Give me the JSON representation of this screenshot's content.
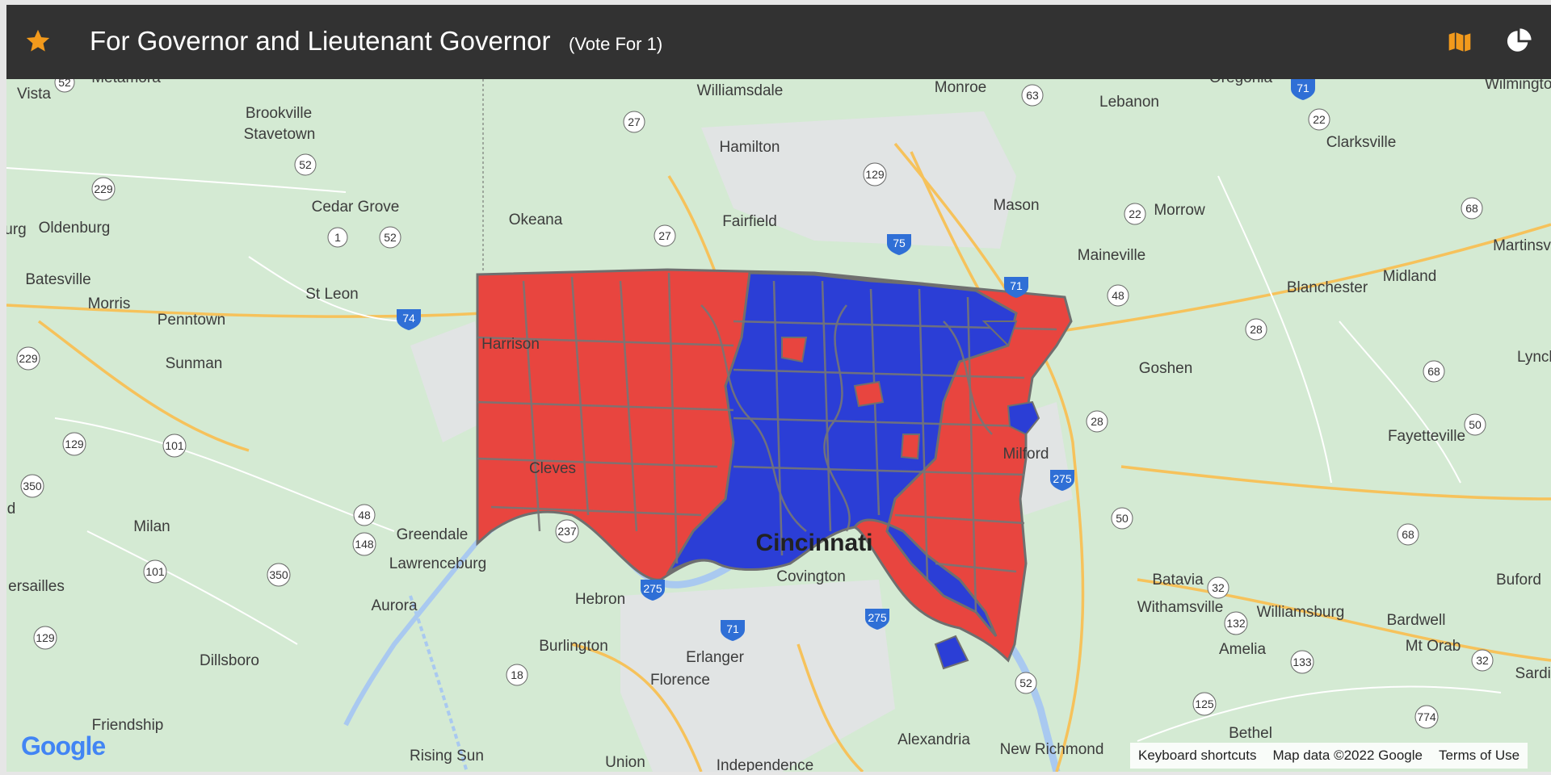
{
  "header": {
    "title": "For Governor and Lieutenant Governor",
    "subtitle": "(Vote For 1)",
    "accent_color": "#f29a1c",
    "star_icon": "star-icon",
    "map_icon": "map-icon",
    "chart_icon": "pie-chart-icon"
  },
  "map": {
    "party_colors": {
      "red": "#e8453f",
      "blue": "#2b3ed6"
    },
    "places": [
      "Metamora",
      "Vista",
      "Brookville",
      "Stavetown",
      "Williamsdale",
      "Monroe",
      "Lebanon",
      "Oregonia",
      "Wilmington",
      "Hamilton",
      "Clarksville",
      "Oldenburg",
      "Cedar Grove",
      "Okeana",
      "Fairfield",
      "Mason",
      "Morrow",
      "Martinsv",
      "Batesville",
      "Morris",
      "St Leon",
      "Maineville",
      "Midland",
      "Blanchester",
      "Penntown",
      "Harrison",
      "Sunman",
      "Goshen",
      "Lynch",
      "Fayetteville",
      "Cleves",
      "Milford",
      "Milan",
      "Greendale",
      "Lawrenceburg",
      "Cincinnati",
      "Covington",
      "Batavia",
      "Buford",
      "Hebron",
      "Withamsville",
      "Williamsburg",
      "ersailles",
      "Aurora",
      "Bardwell",
      "Amelia",
      "Burlington",
      "Mt Orab",
      "Dillsboro",
      "Erlanger",
      "Florence",
      "Sardin",
      "Friendship",
      "Bethel",
      "Alexandria",
      "Rising Sun",
      "Union",
      "Independence",
      "New Richmond",
      "urg",
      "d"
    ],
    "google_logo": "Google"
  },
  "attribution": {
    "keyboard": "Keyboard shortcuts",
    "mapdata": "Map data ©2022 Google",
    "terms": "Terms of Use"
  }
}
